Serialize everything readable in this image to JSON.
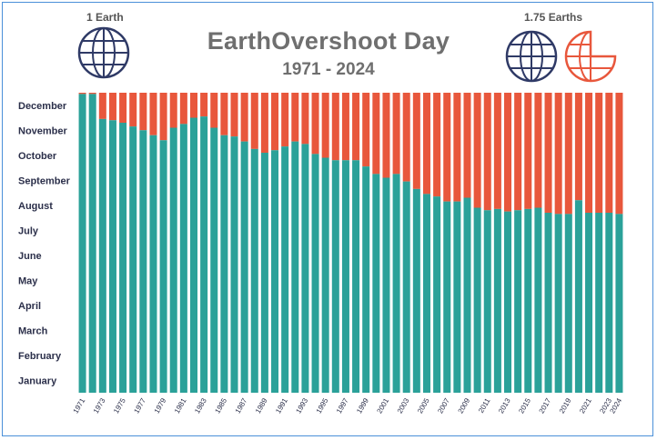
{
  "header": {
    "title": "EarthOvershoot Day",
    "subtitle": "1971 - 2024",
    "left_label": "1 Earth",
    "right_label": "1.75 Earths"
  },
  "icons": {
    "left": "globe-icon",
    "right": [
      "globe-icon",
      "partial-globe-icon"
    ]
  },
  "colors": {
    "overshoot": "#e8573c",
    "available": "#2ba199",
    "globe": "#2f3a66",
    "partial_globe": "#e8573c",
    "text": "#2b2f4a"
  },
  "chart_data": {
    "type": "bar",
    "stacked": true,
    "title": "EarthOvershoot Day",
    "subtitle": "1971 - 2024",
    "y_tick_labels": [
      "January",
      "February",
      "March",
      "April",
      "May",
      "June",
      "July",
      "August",
      "September",
      "October",
      "November",
      "December"
    ],
    "ylim": [
      0,
      12
    ],
    "x_tick_labels": [
      "1971",
      "1973",
      "1975",
      "1977",
      "1979",
      "1981",
      "1983",
      "1985",
      "1987",
      "1989",
      "1991",
      "1993",
      "1995",
      "1997",
      "1999",
      "2001",
      "2003",
      "2005",
      "2007",
      "2009",
      "2011",
      "2013",
      "2015",
      "2017",
      "2019",
      "2021",
      "2023",
      "2024"
    ],
    "categories": [
      "1971",
      "1972",
      "1973",
      "1974",
      "1975",
      "1976",
      "1977",
      "1978",
      "1979",
      "1980",
      "1981",
      "1982",
      "1983",
      "1984",
      "1985",
      "1986",
      "1987",
      "1988",
      "1989",
      "1990",
      "1991",
      "1992",
      "1993",
      "1994",
      "1995",
      "1996",
      "1997",
      "1998",
      "1999",
      "2000",
      "2001",
      "2002",
      "2003",
      "2004",
      "2005",
      "2006",
      "2007",
      "2008",
      "2009",
      "2010",
      "2011",
      "2012",
      "2013",
      "2014",
      "2015",
      "2016",
      "2017",
      "2018",
      "2019",
      "2020",
      "2021",
      "2022",
      "2023",
      "2024"
    ],
    "overshoot_day_month_position": [
      11.95,
      11.95,
      10.95,
      10.9,
      10.8,
      10.65,
      10.5,
      10.3,
      10.1,
      10.6,
      10.75,
      11.0,
      11.05,
      10.6,
      10.3,
      10.25,
      10.05,
      9.75,
      9.6,
      9.7,
      9.85,
      10.05,
      9.95,
      9.55,
      9.4,
      9.3,
      9.3,
      9.3,
      9.05,
      8.75,
      8.6,
      8.75,
      8.45,
      8.15,
      7.95,
      7.85,
      7.65,
      7.65,
      7.8,
      7.4,
      7.3,
      7.35,
      7.25,
      7.3,
      7.35,
      7.4,
      7.2,
      7.15,
      7.15,
      7.7,
      7.2,
      7.2,
      7.2,
      7.15
    ],
    "series": [
      {
        "name": "",
        "color": "#2ba199",
        "values_from": "overshoot_day_month_position"
      },
      {
        "name": "",
        "color": "#e8573c",
        "values_from": "remainder_to_12"
      }
    ],
    "grid": false,
    "legend": "none"
  }
}
